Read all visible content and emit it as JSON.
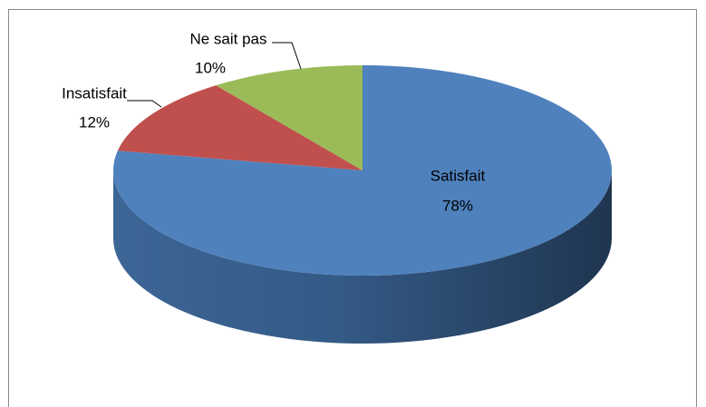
{
  "chart_data": {
    "type": "pie",
    "categories": [
      "Satisfait",
      "Insatisfait",
      "Ne sait pas"
    ],
    "values": [
      78,
      12,
      10
    ],
    "value_labels": [
      "78%",
      "12%",
      "10%"
    ],
    "colors": [
      "#4f81bd",
      "#c0504d",
      "#9bbb59"
    ]
  }
}
